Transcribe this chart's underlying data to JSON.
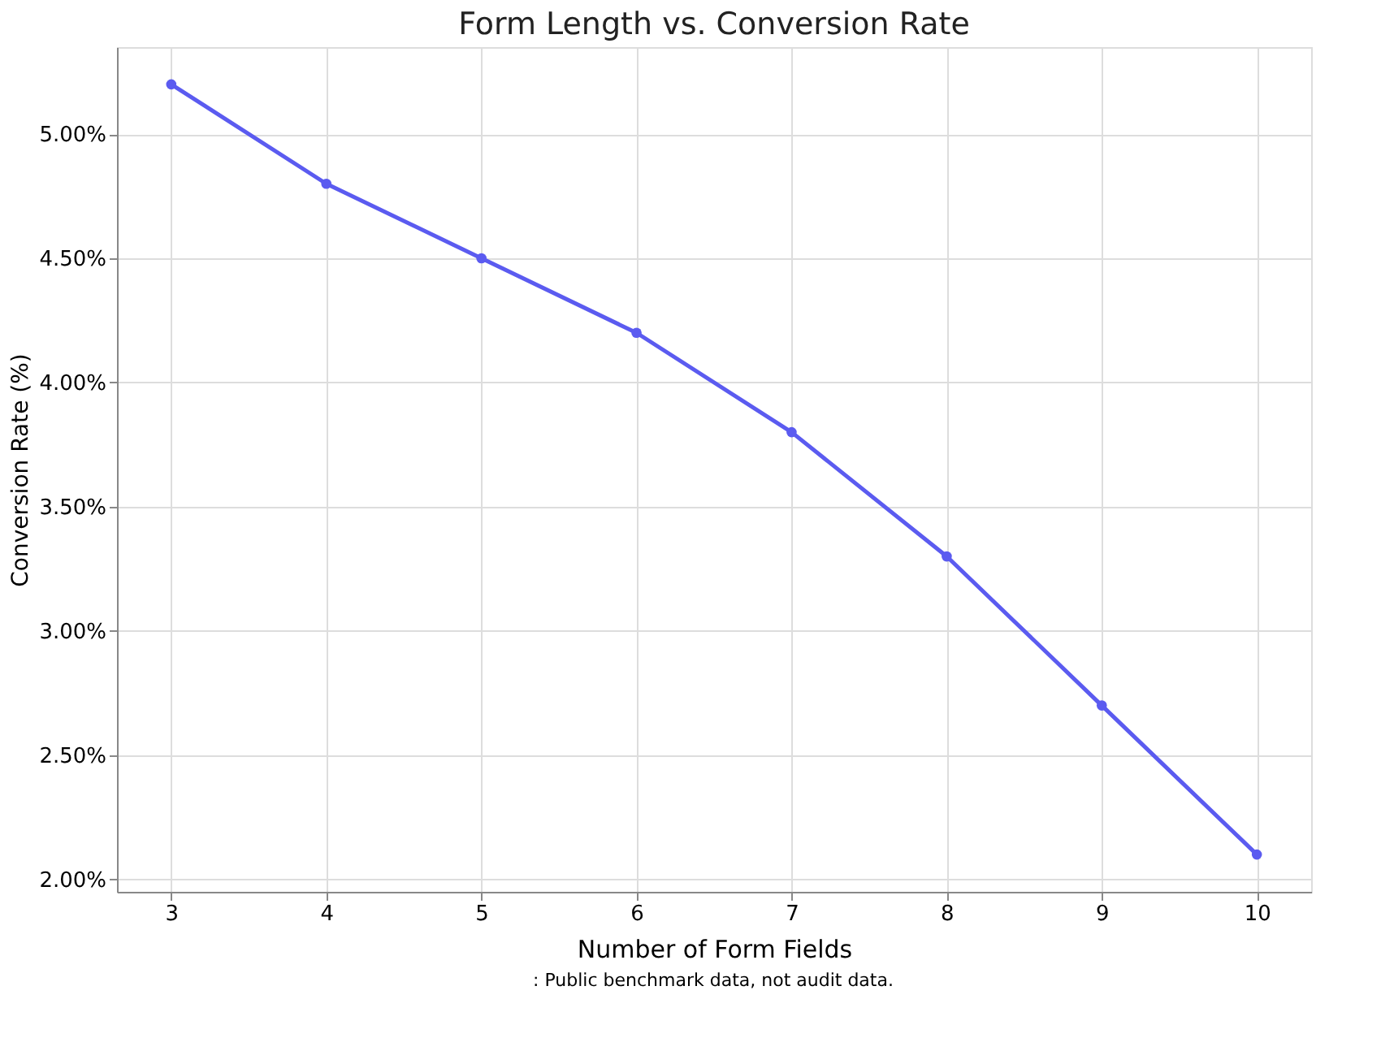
{
  "chart_data": {
    "type": "line",
    "title": "Form Length vs. Conversion Rate",
    "xlabel": "Number of Form Fields",
    "ylabel": "Conversion Rate (%)",
    "x": [
      3,
      4,
      5,
      6,
      7,
      8,
      9,
      10
    ],
    "series": [
      {
        "color": "#5b5bf0",
        "values": [
          5.2,
          4.8,
          4.5,
          4.2,
          3.8,
          3.3,
          2.7,
          2.1
        ]
      }
    ],
    "xlim": [
      2.65,
      10.35
    ],
    "xticks": [
      3,
      4,
      5,
      6,
      7,
      8,
      9,
      10
    ],
    "ylim": [
      1.95,
      5.35
    ],
    "yticks": [
      {
        "value": 2.0,
        "label": "2.00%"
      },
      {
        "value": 2.5,
        "label": "2.50%"
      },
      {
        "value": 3.0,
        "label": "3.00%"
      },
      {
        "value": 3.5,
        "label": "3.50%"
      },
      {
        "value": 4.0,
        "label": "4.00%"
      },
      {
        "value": 4.5,
        "label": "4.50%"
      },
      {
        "value": 5.0,
        "label": "5.00%"
      }
    ],
    "grid": true,
    "marker": "circle",
    "line_style": "solid",
    "annotations": [
      ": Public benchmark data, not audit data."
    ]
  }
}
